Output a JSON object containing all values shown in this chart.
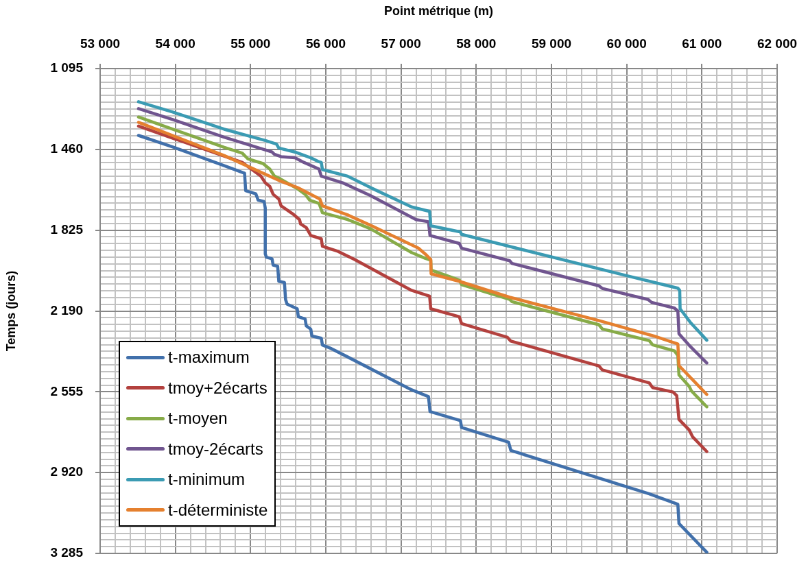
{
  "chart_data": {
    "type": "line",
    "xlabel": "Point métrique (m)",
    "ylabel": "Temps (jours)",
    "xlim": [
      53000,
      62000
    ],
    "xticks": [
      {
        "value": 53000,
        "label": "53 000"
      },
      {
        "value": 53200,
        "label": null
      },
      {
        "value": 53400,
        "label": null
      },
      {
        "value": 53600,
        "label": null
      },
      {
        "value": 53800,
        "label": null
      },
      {
        "value": 54000,
        "label": "54 000"
      },
      {
        "value": 54200,
        "label": null
      },
      {
        "value": 54400,
        "label": null
      },
      {
        "value": 54600,
        "label": null
      },
      {
        "value": 54800,
        "label": null
      },
      {
        "value": 55000,
        "label": "55 000"
      },
      {
        "value": 55200,
        "label": null
      },
      {
        "value": 55400,
        "label": null
      },
      {
        "value": 55600,
        "label": null
      },
      {
        "value": 55800,
        "label": null
      },
      {
        "value": 56000,
        "label": "56 000"
      },
      {
        "value": 56200,
        "label": null
      },
      {
        "value": 56400,
        "label": null
      },
      {
        "value": 56600,
        "label": null
      },
      {
        "value": 56800,
        "label": null
      },
      {
        "value": 57000,
        "label": "57 000"
      },
      {
        "value": 57200,
        "label": null
      },
      {
        "value": 57400,
        "label": null
      },
      {
        "value": 57600,
        "label": null
      },
      {
        "value": 57800,
        "label": null
      },
      {
        "value": 58000,
        "label": "58 000"
      },
      {
        "value": 58200,
        "label": null
      },
      {
        "value": 58400,
        "label": null
      },
      {
        "value": 58600,
        "label": null
      },
      {
        "value": 58800,
        "label": null
      },
      {
        "value": 59000,
        "label": "59 000"
      },
      {
        "value": 59200,
        "label": null
      },
      {
        "value": 59400,
        "label": null
      },
      {
        "value": 59600,
        "label": null
      },
      {
        "value": 59800,
        "label": null
      },
      {
        "value": 60000,
        "label": "60 000"
      },
      {
        "value": 60200,
        "label": null
      },
      {
        "value": 60400,
        "label": null
      },
      {
        "value": 60600,
        "label": null
      },
      {
        "value": 60800,
        "label": null
      },
      {
        "value": 61000,
        "label": "61 000"
      },
      {
        "value": 61200,
        "label": null
      },
      {
        "value": 61400,
        "label": null
      },
      {
        "value": 61600,
        "label": null
      },
      {
        "value": 61800,
        "label": null
      },
      {
        "value": 62000,
        "label": "62 000"
      }
    ],
    "ylim": [
      3285,
      1095
    ],
    "yticks": [
      {
        "value": 1095,
        "label": "1 095"
      },
      {
        "value": 1125.42,
        "label": null
      },
      {
        "value": 1155.83,
        "label": null
      },
      {
        "value": 1186.25,
        "label": null
      },
      {
        "value": 1216.67,
        "label": null
      },
      {
        "value": 1247.08,
        "label": null
      },
      {
        "value": 1277.5,
        "label": null
      },
      {
        "value": 1307.92,
        "label": null
      },
      {
        "value": 1338.33,
        "label": null
      },
      {
        "value": 1368.75,
        "label": null
      },
      {
        "value": 1399.17,
        "label": null
      },
      {
        "value": 1429.58,
        "label": null
      },
      {
        "value": 1460,
        "label": "1 460"
      },
      {
        "value": 1490.42,
        "label": null
      },
      {
        "value": 1520.83,
        "label": null
      },
      {
        "value": 1551.25,
        "label": null
      },
      {
        "value": 1581.67,
        "label": null
      },
      {
        "value": 1612.08,
        "label": null
      },
      {
        "value": 1642.5,
        "label": null
      },
      {
        "value": 1672.92,
        "label": null
      },
      {
        "value": 1703.33,
        "label": null
      },
      {
        "value": 1733.75,
        "label": null
      },
      {
        "value": 1764.17,
        "label": null
      },
      {
        "value": 1794.58,
        "label": null
      },
      {
        "value": 1825,
        "label": "1 825"
      },
      {
        "value": 1855.42,
        "label": null
      },
      {
        "value": 1885.83,
        "label": null
      },
      {
        "value": 1916.25,
        "label": null
      },
      {
        "value": 1946.67,
        "label": null
      },
      {
        "value": 1977.08,
        "label": null
      },
      {
        "value": 2007.5,
        "label": null
      },
      {
        "value": 2037.92,
        "label": null
      },
      {
        "value": 2068.33,
        "label": null
      },
      {
        "value": 2098.75,
        "label": null
      },
      {
        "value": 2129.17,
        "label": null
      },
      {
        "value": 2159.58,
        "label": null
      },
      {
        "value": 2190,
        "label": "2 190"
      },
      {
        "value": 2220.42,
        "label": null
      },
      {
        "value": 2250.83,
        "label": null
      },
      {
        "value": 2281.25,
        "label": null
      },
      {
        "value": 2311.67,
        "label": null
      },
      {
        "value": 2342.08,
        "label": null
      },
      {
        "value": 2372.5,
        "label": null
      },
      {
        "value": 2402.92,
        "label": null
      },
      {
        "value": 2433.33,
        "label": null
      },
      {
        "value": 2463.75,
        "label": null
      },
      {
        "value": 2494.17,
        "label": null
      },
      {
        "value": 2524.58,
        "label": null
      },
      {
        "value": 2555,
        "label": "2 555"
      },
      {
        "value": 2585.42,
        "label": null
      },
      {
        "value": 2615.83,
        "label": null
      },
      {
        "value": 2646.25,
        "label": null
      },
      {
        "value": 2676.67,
        "label": null
      },
      {
        "value": 2707.08,
        "label": null
      },
      {
        "value": 2737.5,
        "label": null
      },
      {
        "value": 2767.92,
        "label": null
      },
      {
        "value": 2798.33,
        "label": null
      },
      {
        "value": 2828.75,
        "label": null
      },
      {
        "value": 2859.17,
        "label": null
      },
      {
        "value": 2889.58,
        "label": null
      },
      {
        "value": 2920,
        "label": "2 920"
      },
      {
        "value": 2950.42,
        "label": null
      },
      {
        "value": 2980.83,
        "label": null
      },
      {
        "value": 3011.25,
        "label": null
      },
      {
        "value": 3041.67,
        "label": null
      },
      {
        "value": 3072.08,
        "label": null
      },
      {
        "value": 3102.5,
        "label": null
      },
      {
        "value": 3132.92,
        "label": null
      },
      {
        "value": 3163.33,
        "label": null
      },
      {
        "value": 3193.75,
        "label": null
      },
      {
        "value": 3224.17,
        "label": null
      },
      {
        "value": 3254.58,
        "label": null
      },
      {
        "value": 3285,
        "label": "3 285"
      }
    ],
    "grid": true,
    "legend": "bottom left",
    "series": [
      {
        "name": "t-maximum",
        "color": "#4170ab",
        "x": [
          53510,
          53980,
          54650,
          54920,
          54935,
          55070,
          55100,
          55180,
          55195,
          55195,
          55210,
          55285,
          55300,
          55360,
          55375,
          55450,
          55465,
          55485,
          55620,
          55635,
          55725,
          55740,
          55800,
          55815,
          55940,
          55955,
          56075,
          57140,
          57365,
          57385,
          57790,
          57805,
          58430,
          58460,
          60300,
          60680,
          60695,
          61065
        ],
        "values": [
          1397,
          1451,
          1534,
          1568,
          1647,
          1661,
          1689,
          1696,
          1725,
          1932,
          1947,
          1954,
          1983,
          1988,
          2056,
          2061,
          2138,
          2159,
          2180,
          2216,
          2226,
          2257,
          2272,
          2303,
          2313,
          2344,
          2360,
          2546,
          2577,
          2644,
          2685,
          2716,
          2783,
          2820,
          3016,
          3063,
          3150,
          3280
        ]
      },
      {
        "name": "tmoy+2écarts",
        "color": "#b3413e",
        "x": [
          53510,
          53980,
          54890,
          54950,
          55135,
          55195,
          55255,
          55300,
          55375,
          55405,
          55560,
          55650,
          55665,
          55740,
          55800,
          55940,
          55955,
          56165,
          56380,
          57140,
          57380,
          57395,
          57775,
          57805,
          58415,
          58460,
          59630,
          59675,
          60300,
          60345,
          60615,
          60665,
          60695,
          60830,
          60875,
          61065
        ],
        "values": [
          1355,
          1411,
          1519,
          1534,
          1580,
          1611,
          1627,
          1663,
          1684,
          1715,
          1751,
          1777,
          1797,
          1813,
          1849,
          1864,
          1898,
          1921,
          1957,
          2097,
          2123,
          2180,
          2216,
          2247,
          2309,
          2326,
          2438,
          2456,
          2515,
          2536,
          2556,
          2572,
          2680,
          2727,
          2758,
          2825
        ]
      },
      {
        "name": "t-moyen",
        "color": "#87ab48",
        "x": [
          53510,
          54650,
          54890,
          54965,
          55165,
          55255,
          55315,
          55375,
          55620,
          55725,
          55785,
          55910,
          55955,
          56290,
          56590,
          57140,
          57320,
          57395,
          57400,
          57775,
          57805,
          58445,
          58475,
          59630,
          59675,
          60300,
          60345,
          60635,
          60680,
          60695,
          60830,
          60860,
          61065
        ],
        "values": [
          1314,
          1451,
          1477,
          1503,
          1524,
          1549,
          1580,
          1590,
          1637,
          1663,
          1689,
          1704,
          1746,
          1777,
          1818,
          1926,
          1952,
          1960,
          2005,
          2050,
          2071,
          2138,
          2148,
          2252,
          2271,
          2324,
          2343,
          2370,
          2391,
          2479,
          2530,
          2551,
          2623
        ]
      },
      {
        "name": "tmoy-2écarts",
        "color": "#70558f",
        "x": [
          53510,
          53980,
          54650,
          55285,
          55315,
          55405,
          55590,
          55710,
          55910,
          55940,
          56225,
          56590,
          57200,
          57365,
          57385,
          57775,
          57805,
          58445,
          58475,
          59630,
          59675,
          60285,
          60330,
          60635,
          60680,
          60695,
          60845,
          61065
        ],
        "values": [
          1276,
          1327,
          1405,
          1472,
          1482,
          1493,
          1498,
          1519,
          1549,
          1581,
          1611,
          1668,
          1777,
          1787,
          1849,
          1885,
          1906,
          1963,
          1975,
          2076,
          2088,
          2138,
          2151,
          2177,
          2190,
          2293,
          2350,
          2425
        ]
      },
      {
        "name": "t-minimum",
        "color": "#3b9bb3",
        "x": [
          53510,
          53980,
          54650,
          55195,
          55345,
          55375,
          55590,
          55800,
          55910,
          55940,
          55955,
          56290,
          56590,
          57140,
          57380,
          57395,
          57790,
          57805,
          59995,
          60680,
          60705,
          60710,
          60845,
          61065
        ],
        "values": [
          1245,
          1293,
          1369,
          1420,
          1436,
          1454,
          1472,
          1498,
          1516,
          1519,
          1551,
          1581,
          1632,
          1720,
          1740,
          1805,
          1833,
          1844,
          2030,
          2087,
          2097,
          2180,
          2241,
          2322
        ]
      },
      {
        "name": "t-déterministe",
        "color": "#e5802f",
        "x": [
          53510,
          54650,
          55375,
          55620,
          55920,
          55955,
          56290,
          56590,
          57230,
          57320,
          57395,
          57400,
          57775,
          58445,
          59660,
          60360,
          60680,
          60695,
          61065
        ],
        "values": [
          1338,
          1488,
          1600,
          1632,
          1684,
          1715,
          1756,
          1802,
          1906,
          1932,
          1957,
          2022,
          2056,
          2128,
          2236,
          2303,
          2339,
          2437,
          2567
        ]
      }
    ]
  }
}
